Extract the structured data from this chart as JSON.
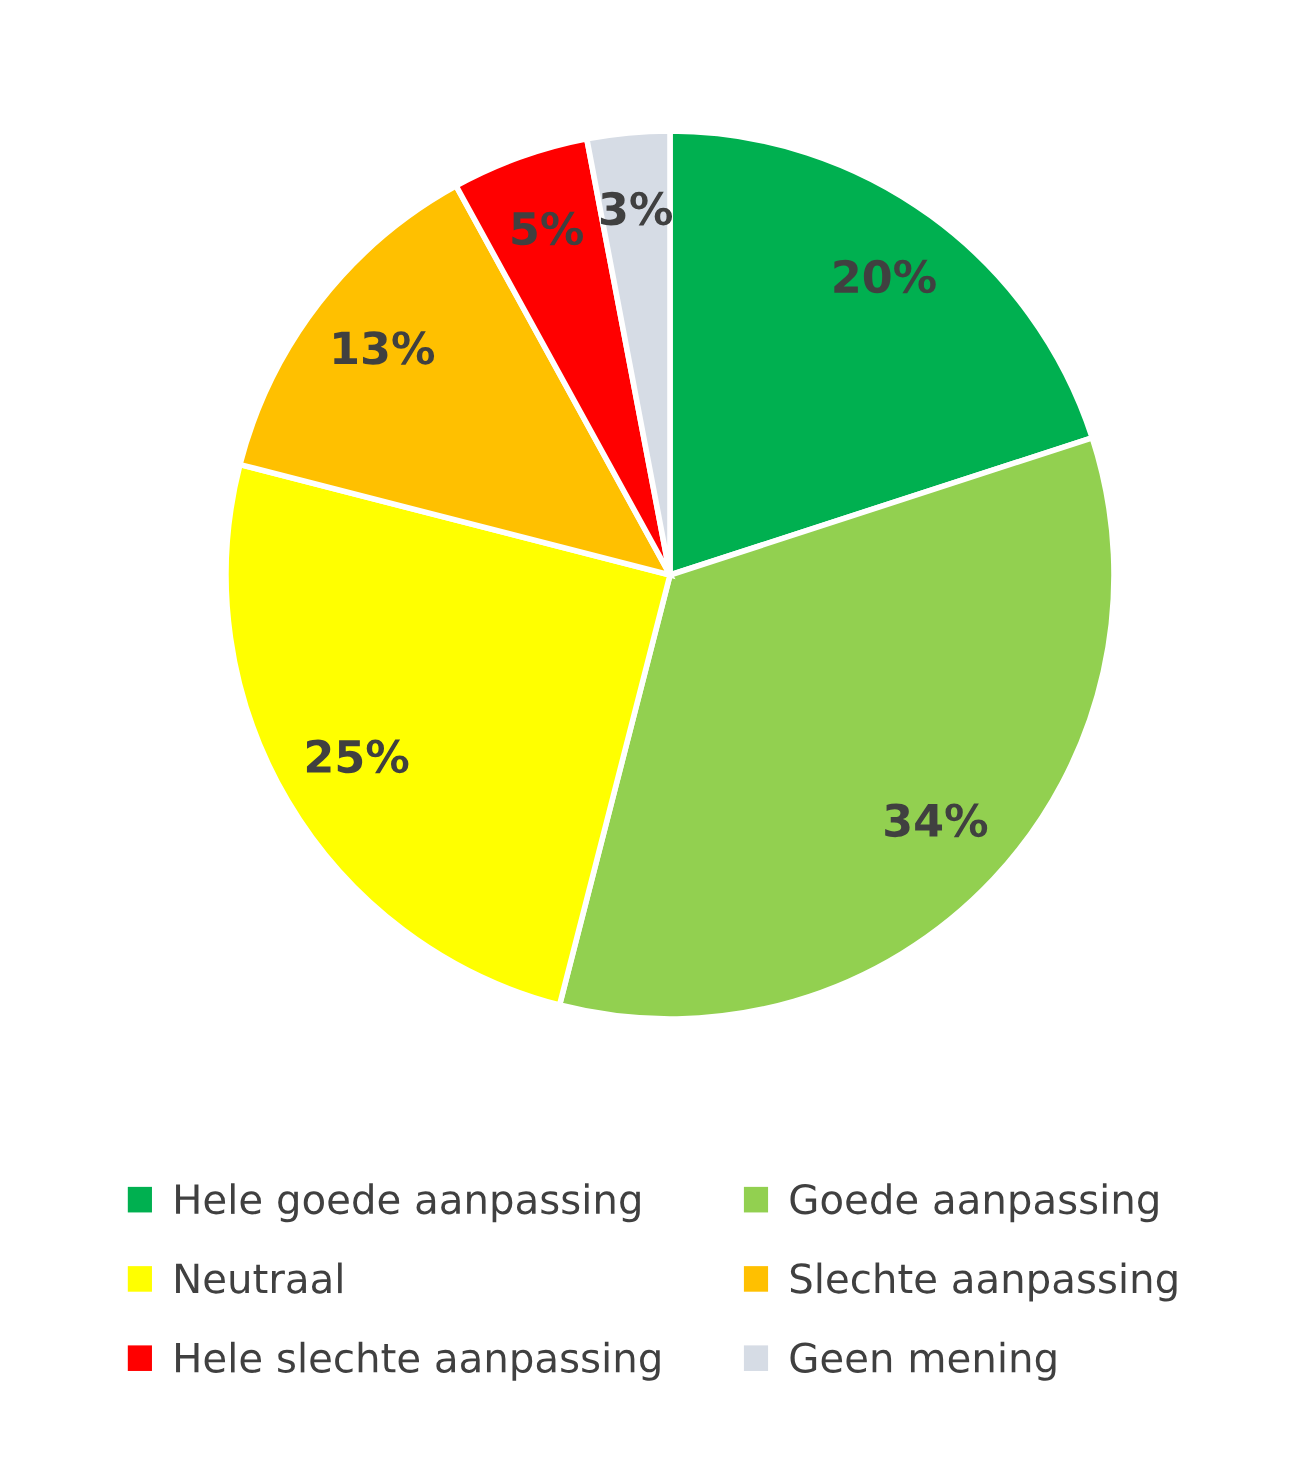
{
  "chart_data": {
    "type": "pie",
    "categories": [
      "Hele goede aanpassing",
      "Goede aanpassing",
      "Neutraal",
      "Slechte aanpassing",
      "Hele slechte aanpassing",
      "Geen mening"
    ],
    "values": [
      20,
      34,
      25,
      13,
      5,
      3
    ],
    "colors": [
      "#00b050",
      "#92d050",
      "#ffff00",
      "#ffc000",
      "#ff0000",
      "#d6dce5"
    ],
    "value_labels": [
      "20%",
      "34%",
      "25%",
      "13%",
      "5%",
      "3%"
    ],
    "legend": "bottom"
  }
}
